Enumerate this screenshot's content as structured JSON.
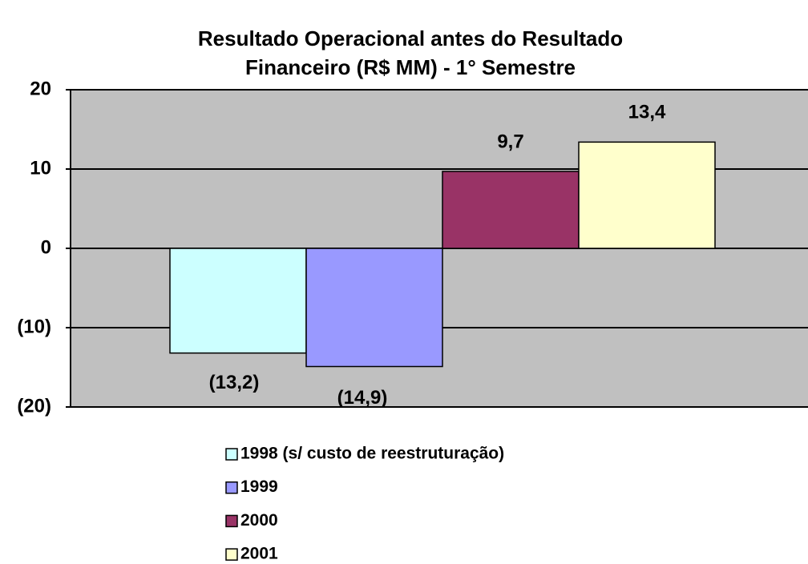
{
  "chart_data": {
    "type": "bar",
    "title": [
      "Resultado Operacional antes do Resultado",
      "Financeiro (R$ MM) - 1° Semestre"
    ],
    "categories": [
      null
    ],
    "series": [
      {
        "name": "1998 (s/ custo de reestruturação)",
        "color": "#ccffff",
        "values": [
          -13.2
        ],
        "value_labels": [
          "(13,2)"
        ]
      },
      {
        "name": "1999",
        "color": "#9999ff",
        "values": [
          -14.9
        ],
        "value_labels": [
          "(14,9)"
        ]
      },
      {
        "name": "2000",
        "color": "#993366",
        "values": [
          9.7
        ],
        "value_labels": [
          "9,7"
        ]
      },
      {
        "name": "2001",
        "color": "#ffffcc",
        "values": [
          13.4
        ],
        "value_labels": [
          "13,4"
        ]
      }
    ],
    "ylim": [
      -20,
      20
    ],
    "yticks": [
      20,
      10,
      0,
      {
        "value": -10,
        "label": "(10)"
      },
      {
        "value": -20,
        "label": "(20)"
      }
    ],
    "grid": true,
    "legend": "bottom",
    "plot_background": "#c0c0c0"
  }
}
